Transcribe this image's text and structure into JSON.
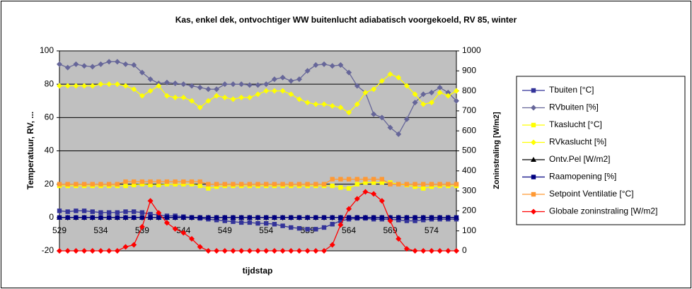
{
  "chart_data": {
    "type": "line",
    "title": "Kas, enkel dek, ontvochtiger WW buitenlucht adiabatisch voorgekoeld, RV 85, winter",
    "xlabel": "tijdstap",
    "ylabel": "Temperatuur,  RV, ...",
    "y2label": "Zoninstraling [W/m2]",
    "categories": [
      529,
      null,
      null,
      null,
      null,
      534,
      null,
      null,
      null,
      null,
      539,
      null,
      null,
      null,
      null,
      544,
      null,
      null,
      null,
      null,
      549,
      null,
      null,
      null,
      null,
      554,
      null,
      null,
      null,
      null,
      559,
      null,
      null,
      null,
      null,
      564,
      null,
      null,
      null,
      null,
      569,
      null,
      null,
      null,
      null,
      574,
      null,
      null,
      null
    ],
    "ylim": [
      -20,
      100
    ],
    "yticks": [
      -20,
      0,
      20,
      40,
      60,
      80,
      100
    ],
    "y2lim": [
      0,
      1000
    ],
    "y2ticks": [
      0,
      100,
      200,
      300,
      400,
      500,
      600,
      700,
      800,
      900,
      1000
    ],
    "grid": true,
    "legend": "right",
    "series": [
      {
        "name": "Tbuiten [°C]",
        "color": "#333399",
        "marker": "square",
        "values": [
          4,
          3.5,
          4,
          4,
          3.5,
          3,
          3,
          3,
          3.5,
          3.5,
          3,
          2,
          1.5,
          1,
          1,
          0.5,
          0,
          -0.5,
          -1,
          -1.5,
          -2,
          -2.5,
          -3,
          -3,
          -3.5,
          -3.5,
          -4,
          -5,
          -6,
          -6.5,
          -7,
          -7,
          -6,
          -4,
          -2,
          -1,
          -0.5,
          -0.5,
          -1,
          -1,
          -1,
          -1.5,
          -2,
          -2,
          -1.5,
          -1,
          -1,
          -1,
          -1
        ]
      },
      {
        "name": "RVbuiten [%]",
        "color": "#666699",
        "marker": "diamond",
        "values": [
          92,
          90,
          92,
          91,
          90.5,
          92,
          93.5,
          93.5,
          92,
          91.5,
          87,
          83,
          80.5,
          81,
          80.5,
          80,
          79,
          78,
          77,
          77,
          80,
          80,
          80,
          79.5,
          79.5,
          80,
          83,
          84,
          82,
          83,
          88,
          91.5,
          92,
          91,
          91.5,
          87,
          79,
          75,
          62,
          60,
          54,
          50,
          59,
          69,
          74,
          75,
          78,
          75,
          70
        ]
      },
      {
        "name": "Tkaslucht [°C]",
        "color": "#ffff00",
        "marker": "square",
        "values": [
          19,
          19,
          19,
          19,
          19,
          19,
          19,
          19,
          19,
          19.5,
          20,
          19.5,
          19.5,
          20,
          20,
          20,
          20,
          19,
          17.5,
          18.5,
          19,
          19,
          19,
          19,
          19,
          19,
          19,
          19,
          19,
          19,
          19,
          19,
          19,
          19,
          18,
          17.5,
          20,
          21,
          21,
          21,
          21,
          20,
          19.5,
          18.5,
          17.5,
          18.5,
          19,
          19,
          19
        ]
      },
      {
        "name": "RVkaslucht [%]",
        "color": "#ffff00",
        "marker": "diamond",
        "values": [
          79,
          79,
          79,
          79,
          79,
          80,
          80,
          80,
          79,
          77,
          73,
          76,
          79,
          73,
          72,
          72,
          70,
          66,
          70,
          73,
          72,
          71,
          72,
          72,
          74,
          76,
          76,
          76,
          74,
          71,
          69,
          68,
          68,
          67,
          66,
          63,
          68,
          75,
          77,
          82,
          86,
          84,
          79,
          74,
          68,
          69,
          75,
          73,
          76
        ]
      },
      {
        "name": "Ontv.Pel [W/m2]",
        "color": "#000000",
        "marker": "triangle",
        "values": [
          0,
          0,
          0,
          0,
          0,
          0,
          0,
          0,
          0,
          0,
          0,
          0,
          0,
          0,
          0,
          0,
          0,
          0,
          0,
          0,
          0,
          0,
          0,
          0,
          0,
          0,
          0,
          0,
          0,
          0,
          0,
          0,
          0,
          0,
          0,
          0,
          0,
          0,
          0,
          0,
          0,
          0,
          0,
          0,
          0,
          0,
          0,
          0,
          0
        ]
      },
      {
        "name": "Raamopening [%]",
        "color": "#000080",
        "marker": "square",
        "values": [
          0,
          0,
          0,
          0,
          0,
          0,
          0,
          0,
          0,
          0,
          0,
          0,
          0,
          0,
          0,
          0,
          0,
          0,
          0,
          0,
          0,
          0,
          0,
          0,
          0,
          0,
          0,
          0,
          0,
          0,
          0,
          0,
          0,
          0,
          0,
          0,
          0,
          0,
          0,
          0,
          0,
          0,
          0,
          0,
          0,
          0,
          0,
          0,
          0
        ]
      },
      {
        "name": "Setpoint Ventilatie [°C]",
        "color": "#ff9933",
        "marker": "square",
        "values": [
          20,
          20,
          20,
          20,
          20,
          20,
          20,
          20,
          21.5,
          21.5,
          21.5,
          21.5,
          21.5,
          21.5,
          21.5,
          21.5,
          21.5,
          21.5,
          20,
          20,
          20,
          20,
          20,
          20,
          20,
          20,
          20,
          20,
          20,
          20,
          20,
          20,
          20,
          23,
          23,
          23,
          23,
          23,
          23,
          23,
          20,
          20,
          20,
          20,
          20,
          20,
          20,
          20,
          20
        ]
      },
      {
        "name": "Globale zoninstraling  [W/m2]",
        "color": "#ff0000",
        "marker": "diamond",
        "axis": "y2",
        "values": [
          0,
          0,
          0,
          0,
          0,
          0,
          0,
          0,
          20,
          30,
          120,
          250,
          190,
          140,
          110,
          90,
          60,
          20,
          0,
          0,
          0,
          0,
          0,
          0,
          0,
          0,
          0,
          0,
          0,
          0,
          0,
          0,
          0,
          30,
          130,
          210,
          260,
          295,
          285,
          250,
          150,
          60,
          10,
          0,
          0,
          0,
          0,
          0,
          0
        ]
      }
    ]
  }
}
